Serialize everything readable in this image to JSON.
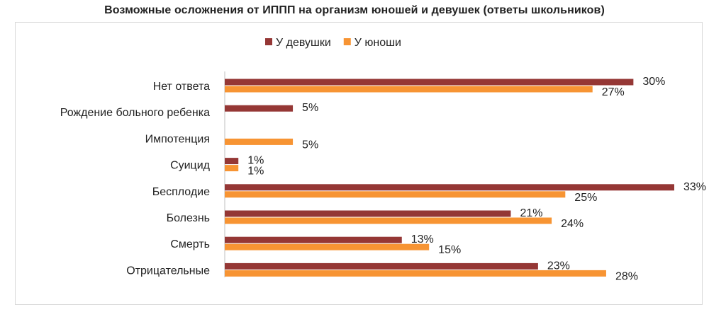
{
  "chart_data": {
    "type": "bar",
    "orientation": "horizontal",
    "title": "Возможные осложнения от  ИППП на организм  юношей и девушек (ответы школьников)",
    "categories": [
      "Нет ответа",
      "Рождение больного ребенка",
      "Импотенция",
      "Суицид",
      "Бесплодие",
      "Болезнь",
      "Смерть",
      "Отрицательные"
    ],
    "series": [
      {
        "name": "У девушки",
        "color": "#953735",
        "values": [
          30,
          5,
          null,
          1,
          33,
          21,
          13,
          23
        ],
        "labels": [
          "30%",
          "5%",
          "",
          "1%",
          "33%",
          "21%",
          "13%",
          "23%"
        ]
      },
      {
        "name": "У юноши",
        "color": "#f79433",
        "values": [
          27,
          null,
          5,
          1,
          25,
          24,
          15,
          28
        ],
        "labels": [
          "27%",
          "",
          "5%",
          "1%",
          "25%",
          "24%",
          "15%",
          "28%"
        ]
      }
    ],
    "xlim": [
      0,
      33
    ],
    "grid": false,
    "legend_position": "top"
  }
}
